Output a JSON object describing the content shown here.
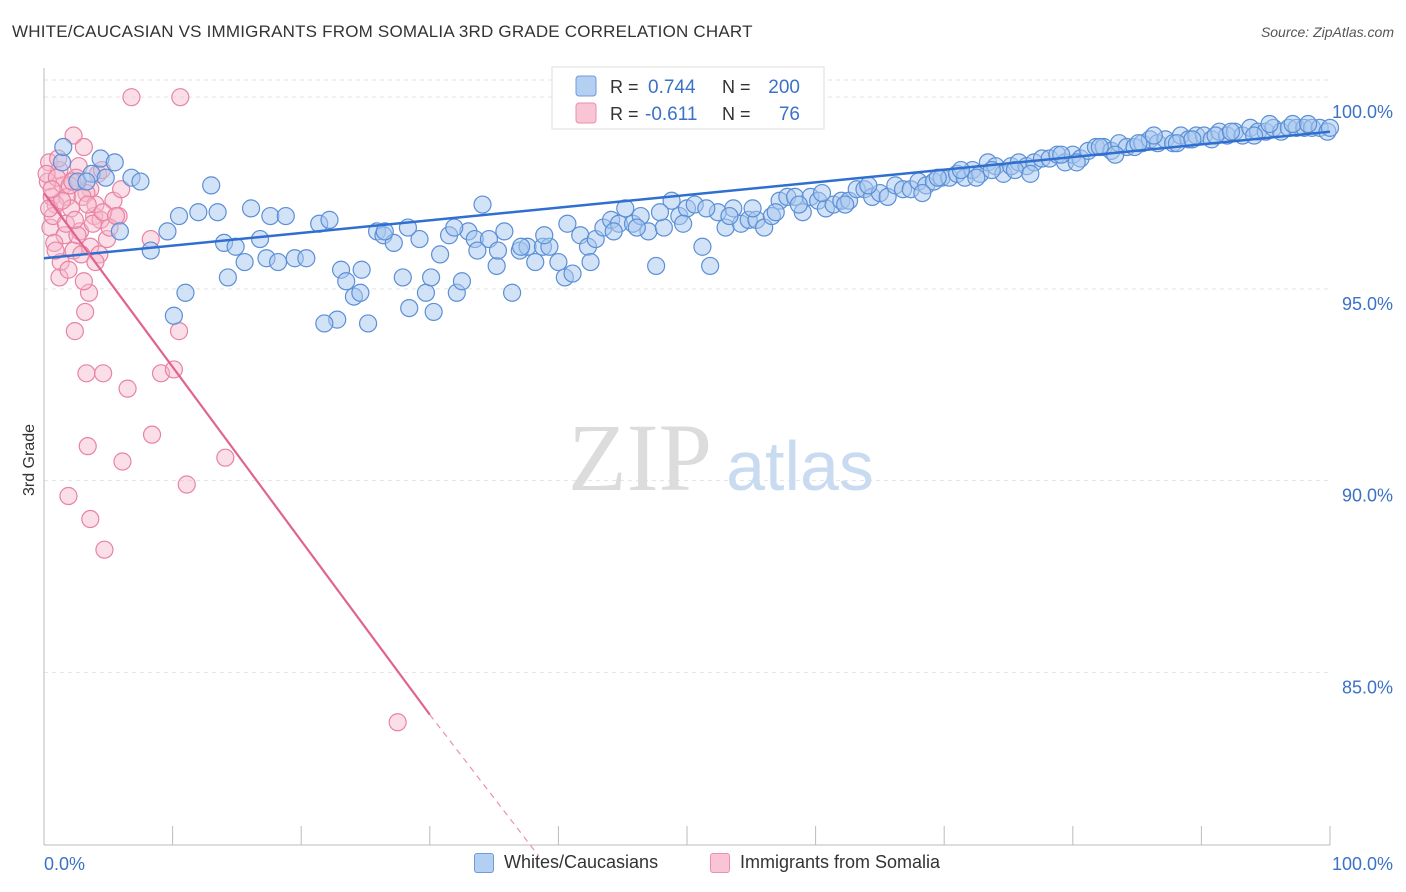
{
  "header": {
    "title": "WHITE/CAUCASIAN VS IMMIGRANTS FROM SOMALIA 3RD GRADE CORRELATION CHART",
    "source": "Source: ZipAtlas.com"
  },
  "watermark": {
    "zip": "ZIP",
    "atlas": "atlas"
  },
  "legend_top": [
    {
      "r_label": "R =",
      "r_value": "0.744",
      "n_label": "N =",
      "n_value": "200"
    },
    {
      "r_label": "R =",
      "r_value": "-0.611",
      "n_label": "N =",
      "n_value": "76"
    }
  ],
  "legend_bottom": [
    {
      "label": "Whites/Caucasians"
    },
    {
      "label": "Immigrants from Somalia"
    }
  ],
  "colors": {
    "blue_fill": "#a8c8f0",
    "blue_stroke": "#5b8fd6",
    "blue_line": "#2f6fcf",
    "pink_fill": "#f7b8cb",
    "pink_stroke": "#e883a3",
    "pink_line": "#e0648f",
    "axis_value_text": "#3a72c8",
    "grid": "#e3e3e3"
  },
  "chart_data": {
    "type": "scatter",
    "title": "WHITE/CAUCASIAN VS IMMIGRANTS FROM SOMALIA 3RD GRADE CORRELATION CHART",
    "xlabel": "",
    "ylabel": "3rd Grade",
    "xlim": [
      0,
      100
    ],
    "ylim": [
      80.5,
      100.5
    ],
    "x_tick_labels": [
      "0.0%",
      "100.0%"
    ],
    "y_ticks": [
      85,
      90,
      95,
      100
    ],
    "y_tick_labels": [
      "85.0%",
      "90.0%",
      "95.0%",
      "100.0%"
    ],
    "grid": true,
    "series": [
      {
        "name": "Whites/Caucasians",
        "r": 0.744,
        "n": 200,
        "trend": {
          "x": [
            0,
            100
          ],
          "y": [
            95.8,
            99.1
          ]
        },
        "points": [
          [
            1.4,
            98.3
          ],
          [
            2.6,
            97.8
          ],
          [
            4.4,
            98.4
          ],
          [
            3.7,
            98.0
          ],
          [
            5.5,
            98.3
          ],
          [
            4.8,
            97.9
          ],
          [
            3.3,
            97.8
          ],
          [
            6.8,
            97.9
          ],
          [
            7.5,
            97.8
          ],
          [
            1.5,
            98.7
          ],
          [
            5.9,
            96.5
          ],
          [
            8.3,
            96.0
          ],
          [
            9.6,
            96.5
          ],
          [
            10.1,
            94.3
          ],
          [
            11.0,
            94.9
          ],
          [
            10.5,
            96.9
          ],
          [
            12.0,
            97.0
          ],
          [
            13.0,
            97.7
          ],
          [
            13.5,
            97.0
          ],
          [
            14.0,
            96.2
          ],
          [
            14.3,
            95.3
          ],
          [
            14.9,
            96.1
          ],
          [
            15.6,
            95.7
          ],
          [
            16.1,
            97.1
          ],
          [
            16.8,
            96.3
          ],
          [
            17.3,
            95.8
          ],
          [
            17.6,
            96.9
          ],
          [
            18.2,
            95.7
          ],
          [
            18.8,
            96.9
          ],
          [
            19.5,
            95.8
          ],
          [
            20.4,
            95.8
          ],
          [
            21.4,
            96.7
          ],
          [
            22.2,
            96.8
          ],
          [
            22.8,
            94.2
          ],
          [
            23.1,
            95.5
          ],
          [
            23.5,
            95.2
          ],
          [
            24.1,
            94.8
          ],
          [
            24.6,
            94.9
          ],
          [
            25.2,
            94.1
          ],
          [
            25.9,
            96.5
          ],
          [
            26.4,
            96.4
          ],
          [
            27.2,
            96.2
          ],
          [
            27.9,
            95.3
          ],
          [
            28.4,
            94.5
          ],
          [
            29.2,
            96.3
          ],
          [
            29.7,
            94.9
          ],
          [
            30.3,
            94.4
          ],
          [
            30.8,
            95.9
          ],
          [
            31.5,
            96.4
          ],
          [
            32.1,
            94.9
          ],
          [
            32.5,
            95.2
          ],
          [
            33.0,
            96.5
          ],
          [
            33.5,
            96.3
          ],
          [
            34.1,
            97.2
          ],
          [
            34.6,
            96.3
          ],
          [
            35.2,
            95.6
          ],
          [
            35.8,
            96.5
          ],
          [
            36.4,
            94.9
          ],
          [
            37.0,
            96.0
          ],
          [
            37.6,
            96.1
          ],
          [
            38.2,
            95.7
          ],
          [
            38.8,
            96.1
          ],
          [
            39.3,
            96.1
          ],
          [
            40.0,
            95.7
          ],
          [
            40.5,
            95.3
          ],
          [
            41.1,
            95.4
          ],
          [
            41.7,
            96.4
          ],
          [
            42.3,
            96.1
          ],
          [
            42.9,
            96.3
          ],
          [
            43.5,
            96.6
          ],
          [
            44.1,
            96.8
          ],
          [
            44.7,
            96.7
          ],
          [
            45.2,
            97.1
          ],
          [
            45.8,
            96.7
          ],
          [
            46.4,
            96.9
          ],
          [
            47.0,
            96.5
          ],
          [
            47.6,
            95.6
          ],
          [
            48.2,
            96.6
          ],
          [
            48.8,
            97.3
          ],
          [
            49.4,
            96.9
          ],
          [
            50.0,
            97.1
          ],
          [
            50.6,
            97.2
          ],
          [
            51.2,
            96.1
          ],
          [
            51.8,
            95.6
          ],
          [
            52.4,
            97.0
          ],
          [
            53.0,
            96.6
          ],
          [
            53.6,
            97.1
          ],
          [
            54.2,
            96.7
          ],
          [
            54.8,
            96.8
          ],
          [
            55.4,
            96.8
          ],
          [
            56.0,
            96.6
          ],
          [
            56.6,
            96.9
          ],
          [
            57.2,
            97.3
          ],
          [
            57.8,
            97.4
          ],
          [
            58.4,
            97.4
          ],
          [
            59.0,
            97.0
          ],
          [
            59.6,
            97.4
          ],
          [
            60.2,
            97.3
          ],
          [
            60.8,
            97.1
          ],
          [
            61.4,
            97.2
          ],
          [
            62.0,
            97.3
          ],
          [
            62.6,
            97.3
          ],
          [
            63.2,
            97.6
          ],
          [
            63.8,
            97.6
          ],
          [
            64.4,
            97.4
          ],
          [
            65.0,
            97.5
          ],
          [
            65.6,
            97.4
          ],
          [
            66.2,
            97.7
          ],
          [
            66.8,
            97.6
          ],
          [
            67.4,
            97.6
          ],
          [
            68.0,
            97.8
          ],
          [
            68.6,
            97.7
          ],
          [
            69.2,
            97.8
          ],
          [
            69.8,
            97.9
          ],
          [
            70.4,
            97.9
          ],
          [
            71.0,
            98.0
          ],
          [
            71.6,
            97.9
          ],
          [
            72.2,
            98.1
          ],
          [
            72.8,
            98.0
          ],
          [
            73.4,
            98.3
          ],
          [
            74.0,
            98.2
          ],
          [
            74.6,
            98.0
          ],
          [
            75.2,
            98.2
          ],
          [
            75.8,
            98.3
          ],
          [
            76.4,
            98.2
          ],
          [
            77.0,
            98.3
          ],
          [
            77.6,
            98.4
          ],
          [
            78.2,
            98.4
          ],
          [
            78.8,
            98.5
          ],
          [
            79.4,
            98.3
          ],
          [
            80.0,
            98.5
          ],
          [
            80.6,
            98.4
          ],
          [
            81.2,
            98.6
          ],
          [
            81.8,
            98.7
          ],
          [
            82.4,
            98.7
          ],
          [
            83.0,
            98.6
          ],
          [
            83.6,
            98.8
          ],
          [
            84.2,
            98.7
          ],
          [
            84.8,
            98.7
          ],
          [
            85.4,
            98.8
          ],
          [
            86.0,
            98.9
          ],
          [
            86.6,
            98.8
          ],
          [
            87.2,
            98.9
          ],
          [
            87.8,
            98.8
          ],
          [
            88.4,
            99.0
          ],
          [
            89.0,
            98.9
          ],
          [
            89.6,
            99.0
          ],
          [
            90.2,
            99.0
          ],
          [
            90.8,
            98.9
          ],
          [
            91.4,
            99.1
          ],
          [
            92.0,
            99.0
          ],
          [
            92.6,
            99.1
          ],
          [
            93.2,
            99.0
          ],
          [
            93.8,
            99.2
          ],
          [
            94.4,
            99.1
          ],
          [
            95.0,
            99.1
          ],
          [
            95.6,
            99.2
          ],
          [
            96.2,
            99.1
          ],
          [
            96.8,
            99.2
          ],
          [
            97.4,
            99.2
          ],
          [
            98.0,
            99.2
          ],
          [
            98.6,
            99.2
          ],
          [
            99.2,
            99.2
          ],
          [
            99.8,
            99.1
          ],
          [
            100.0,
            99.2
          ],
          [
            68.3,
            97.5
          ],
          [
            69.5,
            97.9
          ],
          [
            71.3,
            98.1
          ],
          [
            72.5,
            97.9
          ],
          [
            73.7,
            98.1
          ],
          [
            75.5,
            98.1
          ],
          [
            76.7,
            98.0
          ],
          [
            79.1,
            98.5
          ],
          [
            80.3,
            98.3
          ],
          [
            82.1,
            98.7
          ],
          [
            83.3,
            98.5
          ],
          [
            85.1,
            98.8
          ],
          [
            86.3,
            99.0
          ],
          [
            88.1,
            98.8
          ],
          [
            89.3,
            98.9
          ],
          [
            91.1,
            99.0
          ],
          [
            92.3,
            99.1
          ],
          [
            94.1,
            99.0
          ],
          [
            95.3,
            99.3
          ],
          [
            97.1,
            99.3
          ],
          [
            98.3,
            99.3
          ],
          [
            64.1,
            97.7
          ],
          [
            62.3,
            97.2
          ],
          [
            60.5,
            97.5
          ],
          [
            58.7,
            97.2
          ],
          [
            56.9,
            97.0
          ],
          [
            55.1,
            97.1
          ],
          [
            53.3,
            96.9
          ],
          [
            51.5,
            97.1
          ],
          [
            49.7,
            96.7
          ],
          [
            47.9,
            97.0
          ],
          [
            46.1,
            96.6
          ],
          [
            44.3,
            96.5
          ],
          [
            42.5,
            95.7
          ],
          [
            40.7,
            96.7
          ],
          [
            38.9,
            96.4
          ],
          [
            37.1,
            96.1
          ],
          [
            35.3,
            96.0
          ],
          [
            33.7,
            96.0
          ],
          [
            31.9,
            96.6
          ],
          [
            30.1,
            95.3
          ],
          [
            28.3,
            96.6
          ],
          [
            26.5,
            96.5
          ],
          [
            24.7,
            95.5
          ],
          [
            21.8,
            94.1
          ]
        ]
      },
      {
        "name": "Immigrants from Somalia",
        "r": -0.611,
        "n": 76,
        "trend": {
          "x": [
            0,
            30
          ],
          "y": [
            97.5,
            83.9
          ]
        },
        "trend_dashed": {
          "x": [
            30,
            38.5
          ],
          "y": [
            83.9,
            80.2
          ]
        },
        "points": [
          [
            6.8,
            100.0
          ],
          [
            10.6,
            100.0
          ],
          [
            2.3,
            99.0
          ],
          [
            3.1,
            98.7
          ],
          [
            0.4,
            98.3
          ],
          [
            1.2,
            98.1
          ],
          [
            2.7,
            98.2
          ],
          [
            4.2,
            98.0
          ],
          [
            0.3,
            97.8
          ],
          [
            1.5,
            97.7
          ],
          [
            2.5,
            97.9
          ],
          [
            3.6,
            97.6
          ],
          [
            0.6,
            97.4
          ],
          [
            1.8,
            97.4
          ],
          [
            3.3,
            97.5
          ],
          [
            5.4,
            97.3
          ],
          [
            0.9,
            97.2
          ],
          [
            2.1,
            97.1
          ],
          [
            3.9,
            96.9
          ],
          [
            5.8,
            96.9
          ],
          [
            0.5,
            96.6
          ],
          [
            1.6,
            96.4
          ],
          [
            2.8,
            96.5
          ],
          [
            4.4,
            96.8
          ],
          [
            0.8,
            96.2
          ],
          [
            2.3,
            96.0
          ],
          [
            3.6,
            96.1
          ],
          [
            1.3,
            95.7
          ],
          [
            4.3,
            95.9
          ],
          [
            1.2,
            95.3
          ],
          [
            3.5,
            94.9
          ],
          [
            3.2,
            94.4
          ],
          [
            2.4,
            93.9
          ],
          [
            10.5,
            93.9
          ],
          [
            3.3,
            92.8
          ],
          [
            4.6,
            92.8
          ],
          [
            9.1,
            92.8
          ],
          [
            10.1,
            92.9
          ],
          [
            6.5,
            92.4
          ],
          [
            8.4,
            91.2
          ],
          [
            3.4,
            90.9
          ],
          [
            6.1,
            90.5
          ],
          [
            14.1,
            90.6
          ],
          [
            11.1,
            89.9
          ],
          [
            1.9,
            89.6
          ],
          [
            3.6,
            89.0
          ],
          [
            4.7,
            88.2
          ],
          [
            27.5,
            83.7
          ],
          [
            0.2,
            98.0
          ],
          [
            1.0,
            97.9
          ],
          [
            2.0,
            97.7
          ],
          [
            3.0,
            97.4
          ],
          [
            4.0,
            97.2
          ],
          [
            0.7,
            96.9
          ],
          [
            1.7,
            96.7
          ],
          [
            2.6,
            96.4
          ],
          [
            3.8,
            96.7
          ],
          [
            4.9,
            96.3
          ],
          [
            0.4,
            97.1
          ],
          [
            1.4,
            97.3
          ],
          [
            2.2,
            97.8
          ],
          [
            3.4,
            97.2
          ],
          [
            4.6,
            97.0
          ],
          [
            5.1,
            96.6
          ],
          [
            0.9,
            96.0
          ],
          [
            1.9,
            95.5
          ],
          [
            2.9,
            95.9
          ],
          [
            4.0,
            95.7
          ],
          [
            8.3,
            96.3
          ],
          [
            6.0,
            97.6
          ],
          [
            5.6,
            96.9
          ],
          [
            3.1,
            95.2
          ],
          [
            4.5,
            98.1
          ],
          [
            1.1,
            98.4
          ],
          [
            2.4,
            96.8
          ],
          [
            0.6,
            97.6
          ]
        ]
      }
    ]
  }
}
